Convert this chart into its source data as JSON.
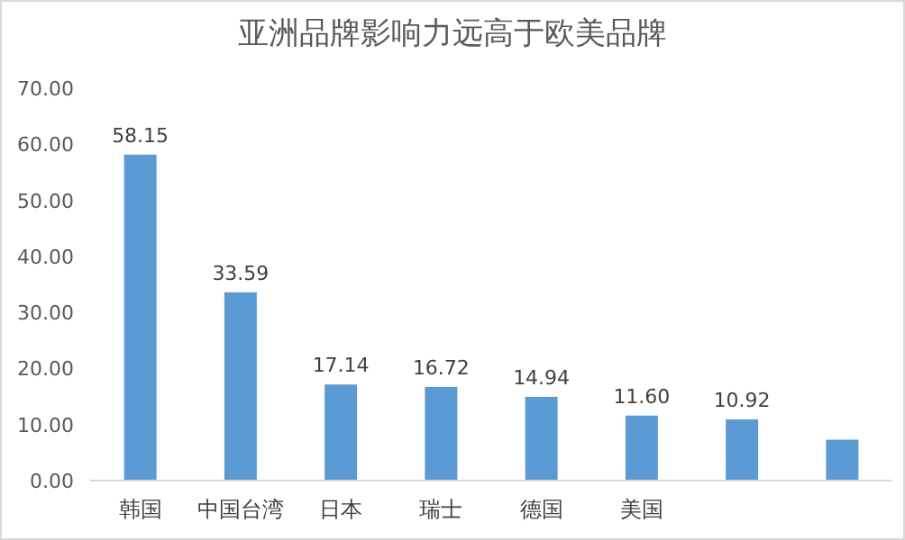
{
  "chart_data": {
    "type": "bar",
    "title": "亚洲品牌影响力远高于欧美品牌",
    "categories": [
      "韩国",
      "中国台湾",
      "日本",
      "瑞士",
      "德国",
      "美国",
      null,
      null
    ],
    "values": [
      58.15,
      33.59,
      17.14,
      16.72,
      14.94,
      11.6,
      10.92,
      7.3
    ],
    "value_labels": [
      "58.15",
      "33.59",
      "17.14",
      "16.72",
      "14.94",
      "11.60",
      "10.92",
      null
    ],
    "color": "#5b9bd5",
    "ylim": [
      0,
      70
    ],
    "yticks": [
      {
        "value": 0,
        "label": "0.00"
      },
      {
        "value": 10,
        "label": "10.00"
      },
      {
        "value": 20,
        "label": "20.00"
      },
      {
        "value": 30,
        "label": "30.00"
      },
      {
        "value": 40,
        "label": "40.00"
      },
      {
        "value": 50,
        "label": "50.00"
      },
      {
        "value": 60,
        "label": "60.00"
      },
      {
        "value": 70,
        "label": "70.00"
      }
    ],
    "grid": false
  }
}
